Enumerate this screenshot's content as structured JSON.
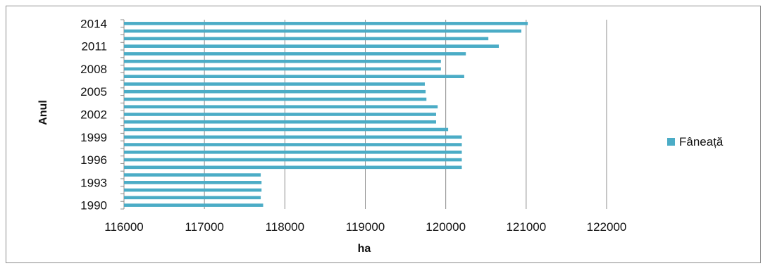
{
  "chart_data": {
    "type": "bar",
    "orientation": "horizontal",
    "xlabel": "ha",
    "ylabel": "Anul",
    "xlim": [
      116000,
      122000
    ],
    "xticks": [
      116000,
      117000,
      118000,
      119000,
      120000,
      121000,
      122000
    ],
    "categories": [
      "1990",
      "1991",
      "1992",
      "1993",
      "1994",
      "1995",
      "1996",
      "1997",
      "1998",
      "1999",
      "2000",
      "2001",
      "2002",
      "2003",
      "2004",
      "2005",
      "2006",
      "2007",
      "2008",
      "2009",
      "2010",
      "2011",
      "2012",
      "2013",
      "2014"
    ],
    "y_tick_labels": [
      "1990",
      "1993",
      "1996",
      "1999",
      "2002",
      "2005",
      "2008",
      "2011",
      "2014"
    ],
    "series": [
      {
        "name": "Fâneață",
        "color": "#4bacc6",
        "values": [
          117730,
          117700,
          117710,
          117710,
          117700,
          120200,
          120200,
          120200,
          120200,
          120200,
          120030,
          119880,
          119880,
          119900,
          119760,
          119750,
          119740,
          120230,
          119940,
          119940,
          120250,
          120660,
          120530,
          120940,
          121020
        ]
      }
    ],
    "grid": "vertical",
    "legend_position": "right"
  }
}
